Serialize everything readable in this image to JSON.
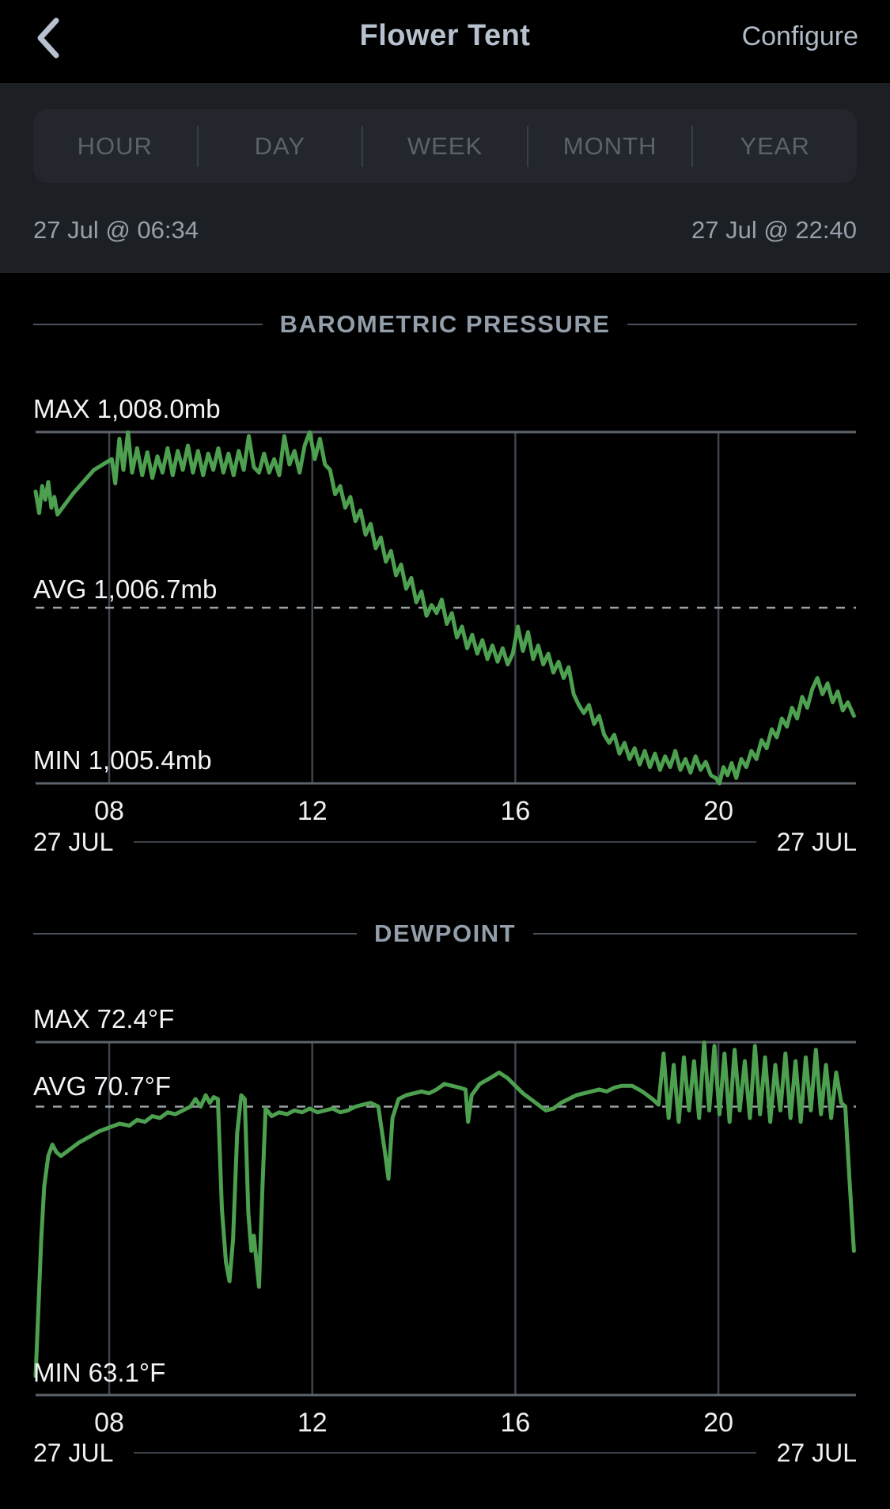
{
  "header": {
    "title": "Flower Tent",
    "configure_label": "Configure",
    "back_icon": "chevron-left"
  },
  "tabs": [
    "HOUR",
    "DAY",
    "WEEK",
    "MONTH",
    "YEAR"
  ],
  "date_range": {
    "start": "27 Jul @ 06:34",
    "end": "27 Jul @ 22:40"
  },
  "charts": [
    {
      "title": "BAROMETRIC PRESSURE",
      "max_label": "MAX 1,008.0mb",
      "avg_label": "AVG 1,006.7mb",
      "min_label": "MIN 1,005.4mb",
      "footer_left": "27 JUL",
      "footer_right": "27 JUL"
    },
    {
      "title": "DEWPOINT",
      "max_label": "MAX 72.4°F",
      "avg_label": "AVG 70.7°F",
      "min_label": "MIN 63.1°F",
      "footer_left": "27 JUL",
      "footer_right": "27 JUL"
    }
  ],
  "chart_data": [
    {
      "type": "line",
      "title": "BAROMETRIC PRESSURE",
      "unit": "mb",
      "max": 1008.0,
      "avg": 1006.7,
      "min": 1005.4,
      "x_unit": "hour_of_day",
      "x_range": [
        6.55,
        22.71
      ],
      "grid_hours": [
        8,
        12,
        16,
        20
      ],
      "grid_labels": [
        "08",
        "12",
        "16",
        "20"
      ],
      "legend": "none",
      "grid": "vertical-only",
      "points": [
        [
          6.55,
          1007.56
        ],
        [
          6.62,
          1007.4
        ],
        [
          6.68,
          1007.6
        ],
        [
          6.74,
          1007.5
        ],
        [
          6.8,
          1007.63
        ],
        [
          6.86,
          1007.44
        ],
        [
          6.92,
          1007.52
        ],
        [
          6.98,
          1007.39
        ],
        [
          7.3,
          1007.55
        ],
        [
          7.7,
          1007.72
        ],
        [
          8.05,
          1007.8
        ],
        [
          8.12,
          1007.62
        ],
        [
          8.2,
          1007.95
        ],
        [
          8.28,
          1007.72
        ],
        [
          8.37,
          1008.0
        ],
        [
          8.45,
          1007.7
        ],
        [
          8.55,
          1007.88
        ],
        [
          8.65,
          1007.68
        ],
        [
          8.75,
          1007.85
        ],
        [
          8.85,
          1007.66
        ],
        [
          8.95,
          1007.82
        ],
        [
          9.05,
          1007.7
        ],
        [
          9.15,
          1007.88
        ],
        [
          9.25,
          1007.68
        ],
        [
          9.35,
          1007.86
        ],
        [
          9.45,
          1007.72
        ],
        [
          9.55,
          1007.9
        ],
        [
          9.65,
          1007.7
        ],
        [
          9.75,
          1007.86
        ],
        [
          9.85,
          1007.68
        ],
        [
          9.95,
          1007.84
        ],
        [
          10.05,
          1007.72
        ],
        [
          10.15,
          1007.88
        ],
        [
          10.25,
          1007.7
        ],
        [
          10.35,
          1007.84
        ],
        [
          10.45,
          1007.68
        ],
        [
          10.55,
          1007.86
        ],
        [
          10.65,
          1007.72
        ],
        [
          10.75,
          1007.97
        ],
        [
          10.85,
          1007.74
        ],
        [
          10.95,
          1007.7
        ],
        [
          11.05,
          1007.84
        ],
        [
          11.15,
          1007.7
        ],
        [
          11.25,
          1007.8
        ],
        [
          11.35,
          1007.68
        ],
        [
          11.45,
          1007.97
        ],
        [
          11.55,
          1007.76
        ],
        [
          11.65,
          1007.86
        ],
        [
          11.75,
          1007.7
        ],
        [
          11.85,
          1007.9
        ],
        [
          11.95,
          1008.0
        ],
        [
          12.05,
          1007.8
        ],
        [
          12.15,
          1007.95
        ],
        [
          12.25,
          1007.76
        ],
        [
          12.35,
          1007.72
        ],
        [
          12.45,
          1007.54
        ],
        [
          12.55,
          1007.6
        ],
        [
          12.65,
          1007.44
        ],
        [
          12.75,
          1007.52
        ],
        [
          12.85,
          1007.34
        ],
        [
          12.95,
          1007.42
        ],
        [
          13.05,
          1007.24
        ],
        [
          13.15,
          1007.32
        ],
        [
          13.25,
          1007.14
        ],
        [
          13.35,
          1007.22
        ],
        [
          13.45,
          1007.04
        ],
        [
          13.55,
          1007.12
        ],
        [
          13.65,
          1006.94
        ],
        [
          13.75,
          1007.02
        ],
        [
          13.85,
          1006.84
        ],
        [
          13.95,
          1006.92
        ],
        [
          14.05,
          1006.74
        ],
        [
          14.15,
          1006.82
        ],
        [
          14.25,
          1006.64
        ],
        [
          14.35,
          1006.72
        ],
        [
          14.45,
          1006.66
        ],
        [
          14.55,
          1006.76
        ],
        [
          14.65,
          1006.58
        ],
        [
          14.75,
          1006.66
        ],
        [
          14.85,
          1006.48
        ],
        [
          14.95,
          1006.56
        ],
        [
          15.05,
          1006.4
        ],
        [
          15.15,
          1006.5
        ],
        [
          15.25,
          1006.36
        ],
        [
          15.35,
          1006.46
        ],
        [
          15.45,
          1006.32
        ],
        [
          15.55,
          1006.42
        ],
        [
          15.65,
          1006.3
        ],
        [
          15.75,
          1006.4
        ],
        [
          15.85,
          1006.28
        ],
        [
          15.95,
          1006.36
        ],
        [
          16.05,
          1006.56
        ],
        [
          16.15,
          1006.38
        ],
        [
          16.25,
          1006.52
        ],
        [
          16.35,
          1006.32
        ],
        [
          16.45,
          1006.42
        ],
        [
          16.55,
          1006.28
        ],
        [
          16.65,
          1006.36
        ],
        [
          16.75,
          1006.22
        ],
        [
          16.85,
          1006.3
        ],
        [
          16.95,
          1006.18
        ],
        [
          17.05,
          1006.26
        ],
        [
          17.15,
          1006.06
        ],
        [
          17.25,
          1005.98
        ],
        [
          17.35,
          1005.92
        ],
        [
          17.45,
          1005.98
        ],
        [
          17.55,
          1005.84
        ],
        [
          17.65,
          1005.9
        ],
        [
          17.75,
          1005.76
        ],
        [
          17.85,
          1005.7
        ],
        [
          17.95,
          1005.76
        ],
        [
          18.05,
          1005.62
        ],
        [
          18.15,
          1005.7
        ],
        [
          18.25,
          1005.58
        ],
        [
          18.35,
          1005.66
        ],
        [
          18.45,
          1005.54
        ],
        [
          18.55,
          1005.64
        ],
        [
          18.65,
          1005.52
        ],
        [
          18.75,
          1005.62
        ],
        [
          18.85,
          1005.5
        ],
        [
          18.95,
          1005.6
        ],
        [
          19.05,
          1005.52
        ],
        [
          19.15,
          1005.64
        ],
        [
          19.25,
          1005.5
        ],
        [
          19.35,
          1005.58
        ],
        [
          19.45,
          1005.48
        ],
        [
          19.55,
          1005.6
        ],
        [
          19.65,
          1005.5
        ],
        [
          19.75,
          1005.56
        ],
        [
          19.85,
          1005.46
        ],
        [
          19.95,
          1005.44
        ],
        [
          20.02,
          1005.4
        ],
        [
          20.1,
          1005.52
        ],
        [
          20.18,
          1005.46
        ],
        [
          20.26,
          1005.55
        ],
        [
          20.35,
          1005.44
        ],
        [
          20.45,
          1005.58
        ],
        [
          20.55,
          1005.52
        ],
        [
          20.65,
          1005.64
        ],
        [
          20.75,
          1005.58
        ],
        [
          20.85,
          1005.72
        ],
        [
          20.95,
          1005.66
        ],
        [
          21.05,
          1005.8
        ],
        [
          21.15,
          1005.74
        ],
        [
          21.25,
          1005.88
        ],
        [
          21.35,
          1005.82
        ],
        [
          21.45,
          1005.96
        ],
        [
          21.55,
          1005.88
        ],
        [
          21.65,
          1006.04
        ],
        [
          21.75,
          1005.96
        ],
        [
          21.85,
          1006.1
        ],
        [
          21.95,
          1006.18
        ],
        [
          22.05,
          1006.06
        ],
        [
          22.15,
          1006.14
        ],
        [
          22.25,
          1006.0
        ],
        [
          22.35,
          1006.08
        ],
        [
          22.45,
          1005.94
        ],
        [
          22.55,
          1006.0
        ],
        [
          22.67,
          1005.9
        ]
      ]
    },
    {
      "type": "line",
      "title": "DEWPOINT",
      "unit": "°F",
      "max": 72.4,
      "avg": 70.7,
      "min": 63.1,
      "x_unit": "hour_of_day",
      "x_range": [
        6.55,
        22.71
      ],
      "grid_hours": [
        8,
        12,
        16,
        20
      ],
      "grid_labels": [
        "08",
        "12",
        "16",
        "20"
      ],
      "legend": "none",
      "grid": "vertical-only",
      "points": [
        [
          6.55,
          63.6
        ],
        [
          6.6,
          65.2
        ],
        [
          6.66,
          67.2
        ],
        [
          6.72,
          68.6
        ],
        [
          6.8,
          69.4
        ],
        [
          6.88,
          69.7
        ],
        [
          6.96,
          69.5
        ],
        [
          7.05,
          69.4
        ],
        [
          7.2,
          69.55
        ],
        [
          7.4,
          69.75
        ],
        [
          7.6,
          69.9
        ],
        [
          7.8,
          70.05
        ],
        [
          8.0,
          70.15
        ],
        [
          8.2,
          70.25
        ],
        [
          8.4,
          70.2
        ],
        [
          8.55,
          70.35
        ],
        [
          8.7,
          70.3
        ],
        [
          8.85,
          70.45
        ],
        [
          9.0,
          70.4
        ],
        [
          9.15,
          70.55
        ],
        [
          9.3,
          70.5
        ],
        [
          9.45,
          70.6
        ],
        [
          9.6,
          70.7
        ],
        [
          9.7,
          70.9
        ],
        [
          9.8,
          70.7
        ],
        [
          9.9,
          71.0
        ],
        [
          9.98,
          70.8
        ],
        [
          10.06,
          70.95
        ],
        [
          10.14,
          70.9
        ],
        [
          10.22,
          68.0
        ],
        [
          10.3,
          66.6
        ],
        [
          10.37,
          66.1
        ],
        [
          10.44,
          67.2
        ],
        [
          10.52,
          70.0
        ],
        [
          10.6,
          71.0
        ],
        [
          10.67,
          70.9
        ],
        [
          10.74,
          67.9
        ],
        [
          10.8,
          66.9
        ],
        [
          10.85,
          67.3
        ],
        [
          10.95,
          65.95
        ],
        [
          11.02,
          68.6
        ],
        [
          11.08,
          70.65
        ],
        [
          11.2,
          70.45
        ],
        [
          11.35,
          70.55
        ],
        [
          11.5,
          70.5
        ],
        [
          11.65,
          70.6
        ],
        [
          11.8,
          70.55
        ],
        [
          11.95,
          70.65
        ],
        [
          12.1,
          70.55
        ],
        [
          12.25,
          70.6
        ],
        [
          12.4,
          70.65
        ],
        [
          12.55,
          70.55
        ],
        [
          12.7,
          70.6
        ],
        [
          12.85,
          70.7
        ],
        [
          13.0,
          70.75
        ],
        [
          13.15,
          70.8
        ],
        [
          13.3,
          70.7
        ],
        [
          13.42,
          69.6
        ],
        [
          13.5,
          68.8
        ],
        [
          13.58,
          70.4
        ],
        [
          13.7,
          70.9
        ],
        [
          13.85,
          71.0
        ],
        [
          14.0,
          71.05
        ],
        [
          14.15,
          71.1
        ],
        [
          14.3,
          71.05
        ],
        [
          14.45,
          71.15
        ],
        [
          14.6,
          71.3
        ],
        [
          14.75,
          71.25
        ],
        [
          14.9,
          71.2
        ],
        [
          15.02,
          71.15
        ],
        [
          15.07,
          70.3
        ],
        [
          15.14,
          71.0
        ],
        [
          15.3,
          71.3
        ],
        [
          15.5,
          71.45
        ],
        [
          15.68,
          71.6
        ],
        [
          15.85,
          71.45
        ],
        [
          16.0,
          71.25
        ],
        [
          16.15,
          71.05
        ],
        [
          16.3,
          70.9
        ],
        [
          16.45,
          70.75
        ],
        [
          16.6,
          70.6
        ],
        [
          16.75,
          70.65
        ],
        [
          16.9,
          70.8
        ],
        [
          17.05,
          70.9
        ],
        [
          17.2,
          71.0
        ],
        [
          17.35,
          71.05
        ],
        [
          17.5,
          71.1
        ],
        [
          17.65,
          71.15
        ],
        [
          17.8,
          71.1
        ],
        [
          17.95,
          71.2
        ],
        [
          18.1,
          71.25
        ],
        [
          18.3,
          71.25
        ],
        [
          18.5,
          71.1
        ],
        [
          18.7,
          70.9
        ],
        [
          18.82,
          70.75
        ],
        [
          18.92,
          72.1
        ],
        [
          19.02,
          70.4
        ],
        [
          19.12,
          71.8
        ],
        [
          19.22,
          70.3
        ],
        [
          19.32,
          72.0
        ],
        [
          19.42,
          70.6
        ],
        [
          19.52,
          71.9
        ],
        [
          19.62,
          70.4
        ],
        [
          19.72,
          72.4
        ],
        [
          19.82,
          70.6
        ],
        [
          19.92,
          72.3
        ],
        [
          20.02,
          70.5
        ],
        [
          20.12,
          72.1
        ],
        [
          20.22,
          70.3
        ],
        [
          20.32,
          72.2
        ],
        [
          20.42,
          70.6
        ],
        [
          20.52,
          71.9
        ],
        [
          20.62,
          70.4
        ],
        [
          20.72,
          72.3
        ],
        [
          20.82,
          70.5
        ],
        [
          20.92,
          72.0
        ],
        [
          21.02,
          70.3
        ],
        [
          21.12,
          71.8
        ],
        [
          21.22,
          70.6
        ],
        [
          21.32,
          72.1
        ],
        [
          21.42,
          70.4
        ],
        [
          21.52,
          71.9
        ],
        [
          21.62,
          70.3
        ],
        [
          21.72,
          72.0
        ],
        [
          21.82,
          70.6
        ],
        [
          21.92,
          72.2
        ],
        [
          22.02,
          70.5
        ],
        [
          22.12,
          71.8
        ],
        [
          22.22,
          70.4
        ],
        [
          22.32,
          71.6
        ],
        [
          22.42,
          70.8
        ],
        [
          22.5,
          70.7
        ],
        [
          22.58,
          68.8
        ],
        [
          22.67,
          66.9
        ]
      ]
    }
  ],
  "colors": {
    "page_bg": "#000000",
    "panel_bg": "#1c1f24",
    "segmented_bg": "#23262c",
    "series_green": "#4da04f",
    "gridline": "#3e444c",
    "axis_line": "#5d646c",
    "avg_dashed_line": "#9aa1a8",
    "header_text": "#b7c2ce",
    "muted_tab_text": "#5a626c",
    "chart_title_text": "#929ea9",
    "tick_text": "#edeff1"
  }
}
